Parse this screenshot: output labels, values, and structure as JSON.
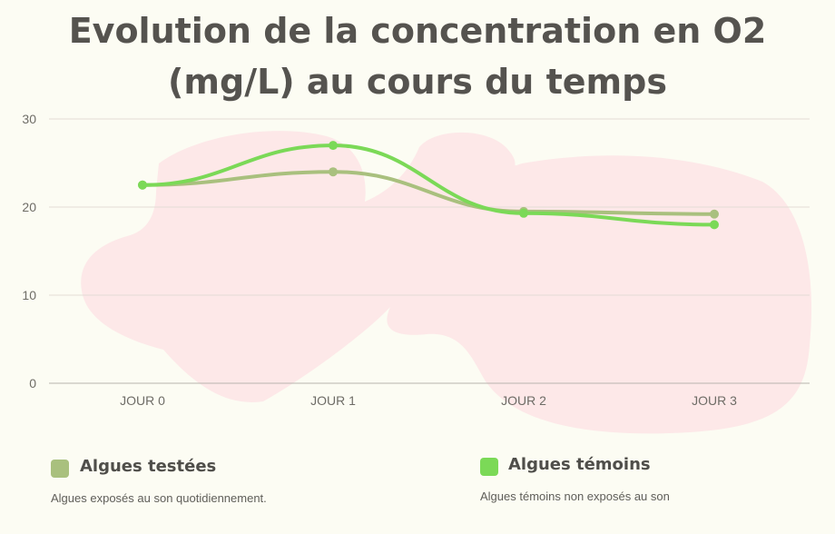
{
  "title": {
    "line1": "Evolution de la concentration en O2",
    "line2": "(mg/L) au cours du temps"
  },
  "colors": {
    "background": "#fcfcf3",
    "blob": "#fde8e8",
    "gridline": "#e3dcd6",
    "tested": "#a9c07e",
    "control": "#7bd957"
  },
  "chart_data": {
    "type": "line",
    "title": "Evolution de la concentration en O2 (mg/L) au cours du temps",
    "categories": [
      "JOUR 0",
      "JOUR 1",
      "JOUR 2",
      "JOUR 3"
    ],
    "y_ticks": [
      0,
      10,
      20,
      30
    ],
    "ylim": [
      0,
      30
    ],
    "grid": true,
    "legend_position": "bottom",
    "series": [
      {
        "name": "Algues testées",
        "values": [
          22.5,
          24.0,
          19.5,
          19.2
        ]
      },
      {
        "name": "Algues témoins",
        "values": [
          22.5,
          27.0,
          19.3,
          18.0
        ]
      }
    ]
  },
  "legend": {
    "items": [
      {
        "name": "Algues testées",
        "description": "Algues exposés au son quotidiennement."
      },
      {
        "name": "Algues témoins",
        "description": "Algues témoins non exposés au son"
      }
    ]
  }
}
